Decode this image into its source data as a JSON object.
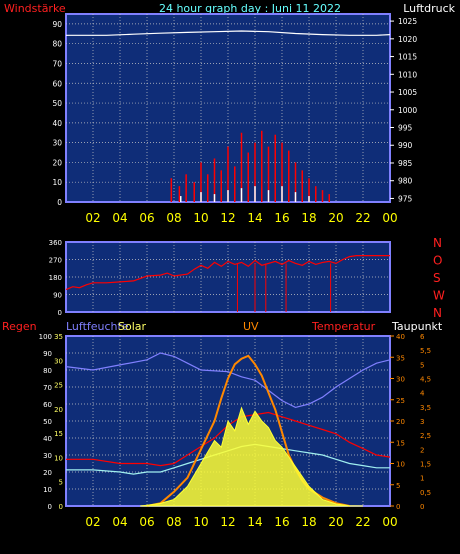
{
  "header": {
    "left_label": "Windstärke",
    "title": "24 hour graph day : Juni 11 2022",
    "right_label": "Luftdruck"
  },
  "colors": {
    "background": "#000000",
    "plot_bg": "#0f2d78",
    "grid": "#c8c8c8",
    "frame": "#8080ff",
    "red": "#ff0000",
    "white": "#ffffff",
    "yellow": "#ffff33",
    "orange": "#ff8800",
    "cyan": "#a0f0f0",
    "blue": "#8080ff",
    "header_title": "#66ffff"
  },
  "time_ticks": [
    "02",
    "04",
    "06",
    "08",
    "10",
    "12",
    "14",
    "16",
    "18",
    "20",
    "22",
    "00"
  ],
  "chart_data": [
    {
      "id": "wind-pressure",
      "type": "line",
      "x_unit": "hour",
      "xlim": [
        0,
        24
      ],
      "left_axis": {
        "label": "Windstärke",
        "ticks": [
          "0",
          "10",
          "20",
          "30",
          "40",
          "50",
          "60",
          "70",
          "80",
          "90"
        ],
        "ylim": [
          0,
          95
        ]
      },
      "right_axis": {
        "label": "Luftdruck",
        "ticks": [
          "975",
          "980",
          "985",
          "990",
          "995",
          "1000",
          "1005",
          "1010",
          "1015",
          "1020",
          "1025"
        ],
        "ylim": [
          974,
          1027
        ]
      },
      "series": [
        {
          "color": "#ffffff",
          "axis": "right",
          "points": [
            [
              0,
              1021
            ],
            [
              3,
              1021
            ],
            [
              5,
              1021.3
            ],
            [
              7,
              1021.6
            ],
            [
              9,
              1021.8
            ],
            [
              11,
              1022
            ],
            [
              13,
              1022.2
            ],
            [
              15,
              1022
            ],
            [
              17,
              1021.5
            ],
            [
              19,
              1021.2
            ],
            [
              21,
              1021
            ],
            [
              23,
              1021
            ],
            [
              24,
              1021.2
            ]
          ]
        },
        {
          "color": "#ff0000",
          "axis": "left",
          "style": "spikes",
          "points": [
            [
              7.8,
              12
            ],
            [
              8.4,
              8
            ],
            [
              8.9,
              14
            ],
            [
              9.5,
              10
            ],
            [
              10,
              20
            ],
            [
              10.5,
              14
            ],
            [
              11,
              22
            ],
            [
              11.5,
              16
            ],
            [
              12,
              28
            ],
            [
              12.5,
              18
            ],
            [
              13,
              35
            ],
            [
              13.5,
              25
            ],
            [
              14,
              30
            ],
            [
              14.5,
              36
            ],
            [
              15,
              28
            ],
            [
              15.5,
              34
            ],
            [
              16,
              30
            ],
            [
              16.5,
              26
            ],
            [
              17,
              20
            ],
            [
              17.5,
              16
            ],
            [
              18,
              12
            ],
            [
              18.5,
              8
            ],
            [
              19,
              6
            ],
            [
              19.5,
              4
            ]
          ]
        },
        {
          "color": "#ffffff",
          "axis": "left",
          "style": "spikes",
          "points": [
            [
              8.5,
              3
            ],
            [
              10,
              5
            ],
            [
              11,
              4
            ],
            [
              12,
              6
            ],
            [
              13,
              7
            ],
            [
              14,
              8
            ],
            [
              15,
              6
            ],
            [
              16,
              8
            ],
            [
              17,
              5
            ],
            [
              18,
              3
            ]
          ]
        }
      ]
    },
    {
      "id": "wind-direction",
      "type": "line",
      "x_unit": "hour",
      "xlim": [
        0,
        24
      ],
      "left_axis": {
        "ticks": [
          "0",
          "90",
          "180",
          "270",
          "360"
        ],
        "ylim": [
          0,
          360
        ]
      },
      "right_axis": {
        "ticks": [
          "N",
          "W",
          "S",
          "O",
          "N"
        ]
      },
      "series": [
        {
          "color": "#ff0000",
          "points": [
            [
              0,
              115
            ],
            [
              0.5,
              130
            ],
            [
              1,
              125
            ],
            [
              1.5,
              140
            ],
            [
              2,
              150
            ],
            [
              3,
              150
            ],
            [
              4,
              155
            ],
            [
              5,
              160
            ],
            [
              6,
              185
            ],
            [
              7,
              190
            ],
            [
              7.5,
              200
            ],
            [
              8,
              185
            ],
            [
              9,
              195
            ],
            [
              9.5,
              220
            ],
            [
              10,
              240
            ],
            [
              10.5,
              225
            ],
            [
              11,
              255
            ],
            [
              11.5,
              235
            ],
            [
              12,
              260
            ],
            [
              12.5,
              245
            ],
            [
              13,
              255
            ],
            [
              13.5,
              235
            ],
            [
              14,
              265
            ],
            [
              14.5,
              240
            ],
            [
              15,
              250
            ],
            [
              15.5,
              260
            ],
            [
              16,
              245
            ],
            [
              16.5,
              265
            ],
            [
              17,
              250
            ],
            [
              17.5,
              240
            ],
            [
              18,
              260
            ],
            [
              18.5,
              245
            ],
            [
              19,
              255
            ],
            [
              19.5,
              260
            ],
            [
              20,
              250
            ],
            [
              20.5,
              270
            ],
            [
              21,
              285
            ],
            [
              21.5,
              290
            ],
            [
              22,
              290
            ],
            [
              23,
              290
            ],
            [
              24,
              290
            ]
          ]
        }
      ],
      "drop_lines_x": [
        12.7,
        14.0,
        14.8,
        16.3,
        19.6
      ]
    },
    {
      "id": "multi-sensor",
      "type": "line",
      "x_unit": "hour",
      "xlim": [
        0,
        24
      ],
      "labels": [
        "Regen",
        "Luftfeuchte",
        "Solar",
        "UV",
        "Temperatur",
        "Taupunkt"
      ],
      "left_axis_regen": {
        "label": "Regen",
        "ticks": [
          "0",
          "10",
          "20",
          "30",
          "40",
          "50",
          "60",
          "70",
          "80",
          "90",
          "100"
        ],
        "ylim": [
          0,
          100
        ]
      },
      "left_axis_feuchte": {
        "label": "Luftfeuchte",
        "ticks": [
          "0",
          "5",
          "10",
          "15",
          "20",
          "25",
          "30",
          "35"
        ],
        "ylim": [
          0,
          35
        ]
      },
      "right_axis_temp": {
        "label": "Temperatur",
        "ticks": [
          "0",
          "5",
          "10",
          "15",
          "20",
          "25",
          "30",
          "35",
          "40"
        ],
        "ylim": [
          0,
          40
        ]
      },
      "right_axis_uv": {
        "label": "UV",
        "ticks": [
          "0",
          "0,5",
          "1",
          "1,5",
          "2",
          "2,5",
          "3",
          "3,5",
          "4",
          "4,5",
          "5",
          "5,5",
          "6"
        ],
        "ylim": [
          0,
          6
        ]
      },
      "series": [
        {
          "color": "#8080ff",
          "unit": "%",
          "points": [
            [
              0,
              82
            ],
            [
              2,
              80
            ],
            [
              4,
              83
            ],
            [
              6,
              86
            ],
            [
              7,
              90
            ],
            [
              8,
              88
            ],
            [
              9,
              84
            ],
            [
              10,
              80
            ],
            [
              12,
              79
            ],
            [
              13,
              76
            ],
            [
              14,
              74
            ],
            [
              15,
              68
            ],
            [
              16,
              62
            ],
            [
              17,
              58
            ],
            [
              18,
              60
            ],
            [
              19,
              64
            ],
            [
              20,
              70
            ],
            [
              21,
              75
            ],
            [
              22,
              80
            ],
            [
              23,
              84
            ],
            [
              24,
              86
            ]
          ]
        },
        {
          "color": "#ff0000",
          "unit": "°C",
          "points": [
            [
              0,
              11
            ],
            [
              2,
              11
            ],
            [
              4,
              10
            ],
            [
              6,
              10
            ],
            [
              7,
              9.5
            ],
            [
              8,
              10
            ],
            [
              9,
              12
            ],
            [
              10,
              14
            ],
            [
              11,
              16
            ],
            [
              12,
              19
            ],
            [
              13,
              21
            ],
            [
              14,
              21.5
            ],
            [
              15,
              22
            ],
            [
              16,
              21
            ],
            [
              17,
              20
            ],
            [
              18,
              19
            ],
            [
              19,
              18
            ],
            [
              20,
              17
            ],
            [
              21,
              15
            ],
            [
              22,
              13.5
            ],
            [
              23,
              12
            ],
            [
              24,
              11.5
            ]
          ]
        },
        {
          "color": "#a0f0f0",
          "unit": "°C",
          "points": [
            [
              0,
              8.5
            ],
            [
              2,
              8.5
            ],
            [
              4,
              8
            ],
            [
              5,
              7.5
            ],
            [
              6,
              8
            ],
            [
              7,
              8
            ],
            [
              8,
              9
            ],
            [
              9,
              10
            ],
            [
              10,
              11
            ],
            [
              11,
              12
            ],
            [
              12,
              13
            ],
            [
              13,
              14
            ],
            [
              14,
              14.5
            ],
            [
              15,
              14
            ],
            [
              16,
              13.5
            ],
            [
              17,
              13
            ],
            [
              18,
              12.5
            ],
            [
              19,
              12
            ],
            [
              20,
              11
            ],
            [
              21,
              10
            ],
            [
              22,
              9.5
            ],
            [
              23,
              9
            ],
            [
              24,
              9
            ]
          ]
        },
        {
          "color": "#ff8800",
          "unit": "UV",
          "points": [
            [
              6,
              0
            ],
            [
              7,
              0.1
            ],
            [
              8,
              0.5
            ],
            [
              9,
              1
            ],
            [
              10,
              2
            ],
            [
              11,
              3
            ],
            [
              11.5,
              3.8
            ],
            [
              12,
              4.5
            ],
            [
              12.5,
              5
            ],
            [
              13,
              5.2
            ],
            [
              13.5,
              5.3
            ],
            [
              14,
              5
            ],
            [
              14.5,
              4.6
            ],
            [
              15,
              4
            ],
            [
              15.5,
              3.4
            ],
            [
              16,
              2.6
            ],
            [
              16.5,
              1.8
            ],
            [
              17,
              1.3
            ],
            [
              17.5,
              0.9
            ],
            [
              18,
              0.6
            ],
            [
              19,
              0.3
            ],
            [
              20,
              0.1
            ],
            [
              21,
              0
            ]
          ]
        },
        {
          "color": "#ffff33",
          "unit": "W/m²",
          "style": "area",
          "points": [
            [
              5.5,
              0
            ],
            [
              6,
              2
            ],
            [
              7,
              8
            ],
            [
              8,
              20
            ],
            [
              9,
              60
            ],
            [
              10,
              130
            ],
            [
              11,
              200
            ],
            [
              11.5,
              180
            ],
            [
              12,
              260
            ],
            [
              12.5,
              230
            ],
            [
              13,
              300
            ],
            [
              13.5,
              250
            ],
            [
              14,
              290
            ],
            [
              14.5,
              260
            ],
            [
              15,
              240
            ],
            [
              15.5,
              200
            ],
            [
              16,
              180
            ],
            [
              16.5,
              150
            ],
            [
              17,
              120
            ],
            [
              17.5,
              90
            ],
            [
              18,
              60
            ],
            [
              18.5,
              40
            ],
            [
              19,
              20
            ],
            [
              20,
              6
            ],
            [
              21,
              1
            ],
            [
              22,
              0
            ]
          ]
        }
      ]
    }
  ]
}
